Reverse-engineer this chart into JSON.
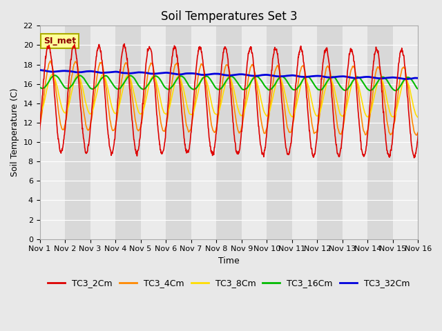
{
  "title": "Soil Temperatures Set 3",
  "xlabel": "Time",
  "ylabel": "Soil Temperature (C)",
  "ylim": [
    0,
    22
  ],
  "yticks": [
    0,
    2,
    4,
    6,
    8,
    10,
    12,
    14,
    16,
    18,
    20,
    22
  ],
  "n_days": 15,
  "x_tick_labels": [
    "Nov 1",
    "Nov 2",
    "Nov 3",
    "Nov 4",
    "Nov 5",
    "Nov 6",
    "Nov 7",
    "Nov 8",
    "Nov 9",
    "Nov 10",
    "Nov 11",
    "Nov 12",
    "Nov 13",
    "Nov 14",
    "Nov 15",
    "Nov 16"
  ],
  "series_order": [
    "TC3_2Cm",
    "TC3_4Cm",
    "TC3_8Cm",
    "TC3_16Cm",
    "TC3_32Cm"
  ],
  "colors": {
    "TC3_2Cm": "#dd0000",
    "TC3_4Cm": "#ff8800",
    "TC3_8Cm": "#ffdd00",
    "TC3_16Cm": "#00bb00",
    "TC3_32Cm": "#0000dd"
  },
  "linewidths": {
    "TC3_2Cm": 1.2,
    "TC3_4Cm": 1.2,
    "TC3_8Cm": 1.2,
    "TC3_16Cm": 1.5,
    "TC3_32Cm": 2.0
  },
  "bg_color": "#e8e8e8",
  "plot_bg_color": "#e0e0e0",
  "band_light": "#ebebeb",
  "band_dark": "#d8d8d8",
  "grid_color": "#ffffff",
  "annotation_text": "SI_met",
  "annotation_color": "#8b0000",
  "annotation_bg": "#ffff99",
  "annotation_border": "#aaaa00",
  "title_fontsize": 12,
  "axis_fontsize": 9,
  "tick_fontsize": 8,
  "legend_fontsize": 9
}
